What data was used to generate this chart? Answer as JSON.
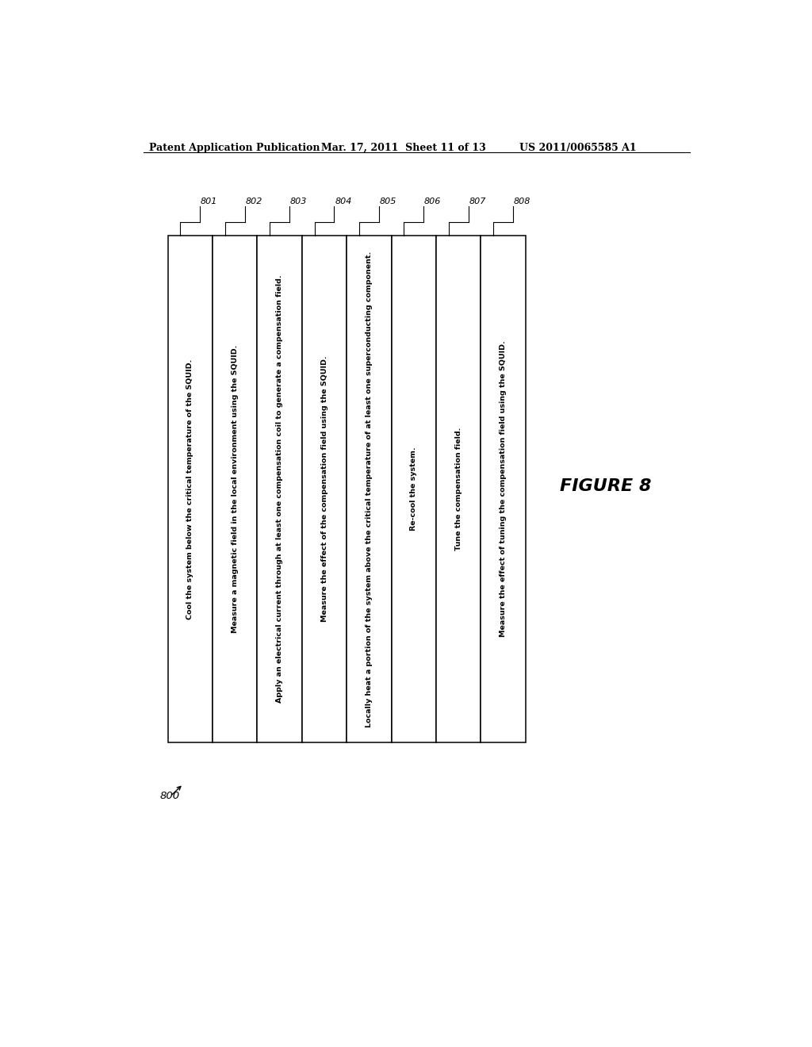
{
  "header_left": "Patent Application Publication",
  "header_mid": "Mar. 17, 2011  Sheet 11 of 13",
  "header_right": "US 2011/0065585 A1",
  "figure_label": "FIGURE 8",
  "diagram_label": "800",
  "boxes": [
    {
      "id": "801",
      "text": "Cool the system below the critical temperature of the SQUID."
    },
    {
      "id": "802",
      "text": "Measure a magnetic field in the local environment using the SQUID."
    },
    {
      "id": "803",
      "text": "Apply an electrical current through at least one compensation coil to generate a compensation field."
    },
    {
      "id": "804",
      "text": "Measure the effect of the compensation field using the SQUID."
    },
    {
      "id": "805",
      "text": "Locally heat a portion of the system above the critical temperature of at least one superconducting component."
    },
    {
      "id": "806",
      "text": "Re-cool the system."
    },
    {
      "id": "807",
      "text": "Tune the compensation field."
    },
    {
      "id": "808",
      "text": "Measure the effect of tuning the compensation field using the SQUID."
    }
  ],
  "bg_color": "#ffffff",
  "box_fill": "#ffffff",
  "box_edge": "#000000",
  "text_color": "#000000",
  "header_fontsize": 9,
  "label_fontsize": 8,
  "text_fontsize": 6.8
}
